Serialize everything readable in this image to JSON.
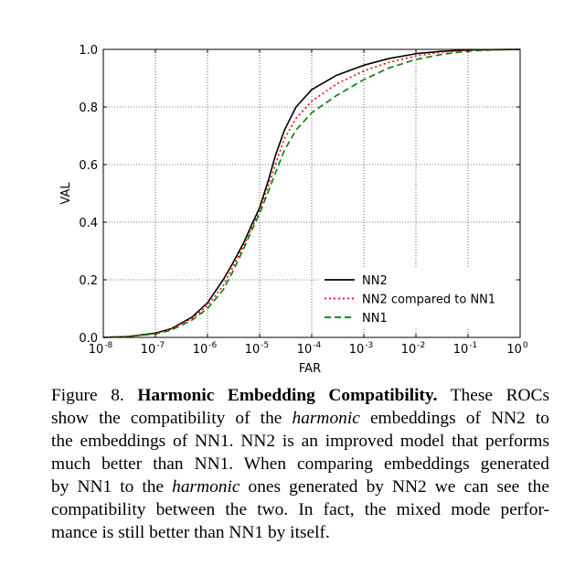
{
  "chart_data": {
    "type": "line",
    "xlabel": "FAR",
    "ylabel": "VAL",
    "xscale": "log",
    "xlim": [
      1e-08,
      1
    ],
    "ylim": [
      0,
      1
    ],
    "xticks": [
      {
        "base": "10",
        "exp": "-8"
      },
      {
        "base": "10",
        "exp": "-7"
      },
      {
        "base": "10",
        "exp": "-6"
      },
      {
        "base": "10",
        "exp": "-5"
      },
      {
        "base": "10",
        "exp": "-4"
      },
      {
        "base": "10",
        "exp": "-3"
      },
      {
        "base": "10",
        "exp": "-2"
      },
      {
        "base": "10",
        "exp": "-1"
      },
      {
        "base": "10",
        "exp": "0"
      }
    ],
    "yticks": [
      "0.0",
      "0.2",
      "0.4",
      "0.6",
      "0.8",
      "1.0"
    ],
    "grid": true,
    "legend_position": "lower-right",
    "series": [
      {
        "name": "NN2",
        "color": "#000000",
        "style": "solid",
        "x": [
          1e-08,
          3e-08,
          1e-07,
          2e-07,
          5e-07,
          1e-06,
          2e-06,
          3e-06,
          5e-06,
          7e-06,
          1e-05,
          1.5e-05,
          2e-05,
          3e-05,
          5e-05,
          0.0001,
          0.0003,
          0.001,
          0.003,
          0.01,
          0.03,
          0.1,
          0.3,
          1
        ],
        "y": [
          0.0,
          0.003,
          0.015,
          0.03,
          0.07,
          0.12,
          0.2,
          0.255,
          0.33,
          0.39,
          0.45,
          0.55,
          0.63,
          0.72,
          0.8,
          0.86,
          0.91,
          0.945,
          0.968,
          0.985,
          0.993,
          0.998,
          0.999,
          1.0
        ]
      },
      {
        "name": "NN2 compared to NN1",
        "color": "#ff0000",
        "style": "dotted",
        "x": [
          1e-08,
          3e-08,
          1e-07,
          2e-07,
          5e-07,
          1e-06,
          2e-06,
          3e-06,
          5e-06,
          7e-06,
          1e-05,
          1.5e-05,
          2e-05,
          3e-05,
          5e-05,
          0.0001,
          0.0003,
          0.001,
          0.003,
          0.01,
          0.03,
          0.1,
          0.3,
          1
        ],
        "y": [
          0.0,
          0.003,
          0.015,
          0.03,
          0.065,
          0.11,
          0.18,
          0.24,
          0.32,
          0.38,
          0.44,
          0.53,
          0.6,
          0.69,
          0.76,
          0.82,
          0.88,
          0.925,
          0.955,
          0.977,
          0.99,
          0.997,
          0.999,
          1.0
        ]
      },
      {
        "name": "NN1",
        "color": "#008000",
        "style": "dashed",
        "x": [
          1e-08,
          3e-08,
          1e-07,
          2e-07,
          5e-07,
          1e-06,
          2e-06,
          3e-06,
          5e-06,
          7e-06,
          1e-05,
          1.5e-05,
          2e-05,
          3e-05,
          5e-05,
          0.0001,
          0.0003,
          0.001,
          0.003,
          0.01,
          0.03,
          0.1,
          0.3,
          1
        ],
        "y": [
          0.0,
          0.003,
          0.012,
          0.025,
          0.06,
          0.1,
          0.165,
          0.225,
          0.31,
          0.37,
          0.43,
          0.51,
          0.57,
          0.65,
          0.72,
          0.78,
          0.84,
          0.895,
          0.935,
          0.965,
          0.982,
          0.994,
          0.998,
          1.0
        ]
      }
    ]
  },
  "caption": {
    "lines": [
      [
        {
          "t": "Figure 8. "
        },
        {
          "t": "Harmonic Embedding Compatibility.",
          "s": "b"
        },
        {
          "t": "  These ROCs"
        }
      ],
      [
        {
          "t": "show the compatibility of the "
        },
        {
          "t": "harmonic",
          "s": "i"
        },
        {
          "t": " embeddings of NN2 to"
        }
      ],
      [
        {
          "t": "the embeddings of NN1. NN2 is an improved model that performs"
        }
      ],
      [
        {
          "t": "much better than NN1. When comparing embeddings generated"
        }
      ],
      [
        {
          "t": "by NN1 to the "
        },
        {
          "t": "harmonic",
          "s": "i"
        },
        {
          "t": " ones generated by NN2 we can see the"
        }
      ],
      [
        {
          "t": "compatibility between the two.  In fact, the mixed mode perfor-"
        }
      ],
      [
        {
          "t": "mance is still better than NN1 by itself."
        }
      ]
    ]
  }
}
